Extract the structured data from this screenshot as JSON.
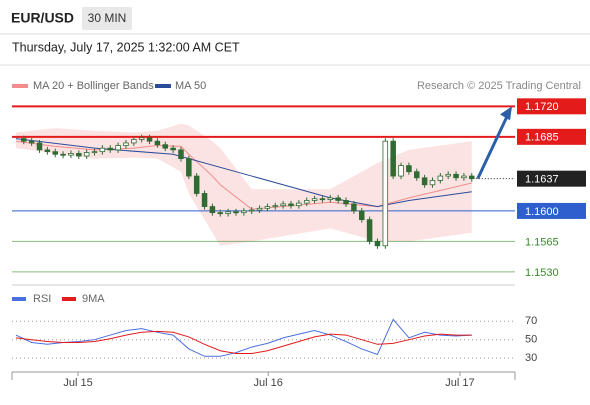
{
  "chart_data": {
    "type": "candlestick",
    "symbol": "EUR/USD",
    "timeframe": "30 MIN",
    "subtitle": "Thursday, July 17, 2025 1:32:00 AM CET",
    "credit": "Research © 2025 Trading Central",
    "xlim": [
      -0.5,
      63.5
    ],
    "xticks": [
      {
        "value": 7.9,
        "label": "Jul 15"
      },
      {
        "value": 32.1,
        "label": "Jul 16"
      },
      {
        "value": 56.5,
        "label": "Jul 17"
      }
    ],
    "ylim": [
      1.1515,
      1.1733
    ],
    "close": [
      1.1683,
      1.168,
      1.1678,
      1.167,
      1.1668,
      1.1665,
      1.1664,
      1.1666,
      1.1663,
      1.1667,
      1.1668,
      1.1672,
      1.167,
      1.1675,
      1.1678,
      1.1682,
      1.1684,
      1.168,
      1.1676,
      1.1672,
      1.167,
      1.166,
      1.164,
      1.162,
      1.1605,
      1.1598,
      1.1597,
      1.1599,
      1.1598,
      1.16,
      1.1601,
      1.1603,
      1.1605,
      1.1606,
      1.1608,
      1.1606,
      1.1609,
      1.1612,
      1.1614,
      1.1613,
      1.1615,
      1.1612,
      1.1608,
      1.16,
      1.159,
      1.1565,
      1.156,
      1.168,
      1.164,
      1.1652,
      1.1645,
      1.1638,
      1.163,
      1.1635,
      1.164,
      1.1642,
      1.1638,
      1.164,
      1.1637
    ],
    "candle_colors": {
      "up": "#ffffff",
      "down": "#2f6b32",
      "outline": "#2f6b32"
    },
    "band": {
      "name": "MA 20 + Bollinger Bands",
      "color": "#f28b8b",
      "fill": "#fbdcdc",
      "x": [
        0,
        5,
        10,
        15,
        18,
        21,
        22,
        25,
        26,
        30,
        40,
        46,
        50,
        58
      ],
      "upper": [
        1.169,
        1.1695,
        1.1692,
        1.169,
        1.1692,
        1.17,
        1.1698,
        1.168,
        1.1672,
        1.1625,
        1.1625,
        1.1655,
        1.167,
        1.168
      ],
      "lower": [
        1.1672,
        1.1666,
        1.166,
        1.1661,
        1.166,
        1.1645,
        1.162,
        1.1575,
        1.156,
        1.1565,
        1.158,
        1.1565,
        1.1565,
        1.1575
      ],
      "ma": [
        1.168,
        1.1674,
        1.167,
        1.1672,
        1.1675,
        1.1674,
        1.1665,
        1.164,
        1.163,
        1.1602,
        1.161,
        1.1605,
        1.1615,
        1.1632
      ]
    },
    "series": [
      {
        "name": "MA 50",
        "color": "#2b4c9b",
        "x": [
          0,
          10,
          20,
          30,
          40,
          46,
          50,
          58
        ],
        "values": [
          1.1683,
          1.1672,
          1.1665,
          1.164,
          1.1615,
          1.1605,
          1.1612,
          1.1622
        ]
      }
    ],
    "levels": [
      {
        "value": 1.172,
        "label": "1.1720",
        "color": "#e31b1b",
        "style": "box"
      },
      {
        "value": 1.1685,
        "label": "1.1685",
        "color": "#e31b1b",
        "style": "box"
      },
      {
        "value": 1.1637,
        "label": "1.1637",
        "color": "#222222",
        "style": "current"
      },
      {
        "value": 1.16,
        "label": "1.1600",
        "color": "#2f5fcf",
        "style": "box"
      },
      {
        "value": 1.1565,
        "label": "1.1565",
        "color": "#3a8a2a",
        "style": "text"
      },
      {
        "value": 1.153,
        "label": "1.1530",
        "color": "#3a8a2a",
        "style": "text"
      }
    ],
    "arrow_color": "#2b5fa8",
    "rsi": {
      "ylim": [
        15,
        80
      ],
      "yticks": [
        30,
        50,
        70
      ],
      "x": [
        0,
        2,
        4,
        6,
        8,
        10,
        12,
        14,
        16,
        18,
        20,
        22,
        24,
        26,
        28,
        30,
        32,
        34,
        36,
        38,
        40,
        42,
        44,
        46,
        48,
        50,
        52,
        54,
        56,
        58
      ],
      "series": [
        {
          "name": "RSI",
          "color": "#4a6fe0",
          "values": [
            55,
            47,
            45,
            47,
            48,
            50,
            55,
            60,
            62,
            58,
            55,
            40,
            32,
            32,
            36,
            42,
            46,
            52,
            56,
            60,
            55,
            48,
            40,
            34,
            72,
            52,
            58,
            55,
            54,
            55
          ]
        },
        {
          "name": "9MA",
          "color": "#e31b1b",
          "values": [
            52,
            50,
            48,
            47,
            47,
            48,
            51,
            55,
            58,
            59,
            58,
            53,
            45,
            38,
            35,
            35,
            38,
            43,
            48,
            53,
            56,
            55,
            50,
            45,
            46,
            50,
            54,
            56,
            55,
            55
          ]
        }
      ]
    }
  }
}
